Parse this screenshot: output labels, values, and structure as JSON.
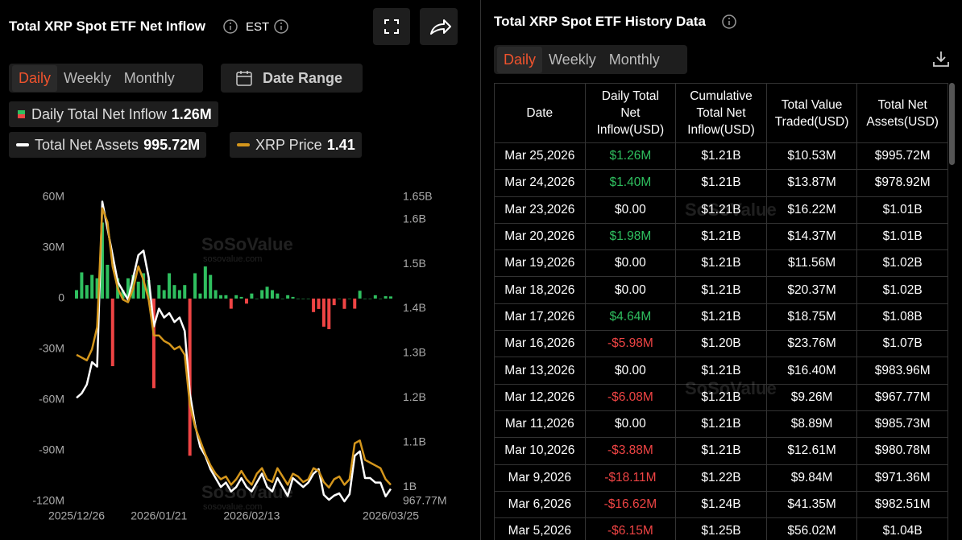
{
  "left_panel": {
    "title": "Total XRP Spot ETF Net Inflow",
    "timezone": "EST",
    "tabs": [
      "Daily",
      "Weekly",
      "Monthly"
    ],
    "date_range": "Date Range"
  },
  "chart_data": {
    "type": "combo",
    "categories": [
      "2025/12/26",
      null,
      null,
      null,
      null,
      null,
      null,
      null,
      null,
      null,
      null,
      null,
      null,
      null,
      null,
      null,
      "2026/01/21",
      null,
      null,
      null,
      null,
      null,
      null,
      null,
      null,
      null,
      null,
      null,
      null,
      null,
      null,
      null,
      null,
      null,
      "2026/02/13",
      null,
      null,
      null,
      null,
      null,
      null,
      null,
      null,
      null,
      null,
      null,
      null,
      null,
      null,
      null,
      null,
      null,
      null,
      null,
      null,
      null,
      null,
      null,
      null,
      null,
      null,
      "2026/03/25"
    ],
    "series": [
      {
        "name": "Daily Total Net Inflow",
        "type": "bar",
        "current": "1.26M",
        "color": "#2fbf5f",
        "negative_color": "#ef4444",
        "values": [
          5,
          15.5,
          8,
          14,
          12,
          45,
          20,
          -40,
          12,
          5,
          12,
          14,
          10,
          15,
          11,
          -53,
          8,
          5,
          15,
          8,
          5,
          8,
          -93,
          15,
          3,
          19,
          14,
          5,
          2,
          2,
          -6,
          2,
          1,
          -3,
          3,
          0,
          5,
          7,
          5,
          3,
          0,
          2,
          1,
          0,
          0,
          0,
          -8,
          -6.15,
          -16.62,
          -18.11,
          -3.88,
          0,
          -6.08,
          0,
          -5.98,
          4.64,
          0,
          0,
          1.98,
          0,
          1.4,
          1.26
        ]
      },
      {
        "name": "Total Net Assets",
        "type": "line",
        "axis": "y2",
        "current": "995.72M",
        "color": "#ffffff",
        "values": [
          1.2,
          1.21,
          1.23,
          1.28,
          1.27,
          1.64,
          1.58,
          1.52,
          1.46,
          1.44,
          1.42,
          1.47,
          1.52,
          1.53,
          1.47,
          1.36,
          1.4,
          1.38,
          1.39,
          1.37,
          1.38,
          1.35,
          1.21,
          1.14,
          1.09,
          1.07,
          1.04,
          1.02,
          1.0,
          1.01,
          0.99,
          1.0,
          1.02,
          1.0,
          0.99,
          1.01,
          1.03,
          1.0,
          0.99,
          1.02,
          1.0,
          0.98,
          1.02,
          1.01,
          1.0,
          1.01,
          1.03,
          1.04,
          0.98251,
          0.97136,
          0.98078,
          0.98573,
          0.96777,
          0.98396,
          1.07,
          1.08,
          1.02,
          1.02,
          1.01,
          1.01,
          0.97892,
          0.99572
        ]
      },
      {
        "name": "XRP Price",
        "type": "line",
        "axis": "y3",
        "current": "1.41",
        "color": "#d4961c",
        "values": [
          1.88,
          1.87,
          1.86,
          1.9,
          1.98,
          2.41,
          2.36,
          2.2,
          2.12,
          2.08,
          2.07,
          2.12,
          2.2,
          2.15,
          2.08,
          1.95,
          1.95,
          1.93,
          1.92,
          1.9,
          1.91,
          1.88,
          1.7,
          1.62,
          1.57,
          1.52,
          1.48,
          1.45,
          1.43,
          1.44,
          1.41,
          1.43,
          1.46,
          1.43,
          1.41,
          1.45,
          1.47,
          1.43,
          1.42,
          1.47,
          1.44,
          1.41,
          1.45,
          1.44,
          1.42,
          1.43,
          1.47,
          1.46,
          1.42,
          1.4,
          1.43,
          1.44,
          1.41,
          1.43,
          1.56,
          1.57,
          1.5,
          1.49,
          1.48,
          1.47,
          1.43,
          1.41
        ]
      }
    ],
    "ylim": [
      -120,
      60
    ],
    "yticks": [
      {
        "value": 60,
        "label": "60M"
      },
      {
        "value": 30,
        "label": "30M"
      },
      0,
      {
        "value": -30,
        "label": "-30M"
      },
      {
        "value": -60,
        "label": "-60M"
      },
      {
        "value": -90,
        "label": "-90M"
      },
      {
        "value": -120,
        "label": "-120M"
      }
    ],
    "y2lim": [
      0.96777,
      1.65
    ],
    "y2ticks": [
      {
        "value": 1.65,
        "label": "1.65B"
      },
      {
        "value": 1.6,
        "label": "1.6B"
      },
      {
        "value": 1.5,
        "label": "1.5B"
      },
      {
        "value": 1.4,
        "label": "1.4B"
      },
      {
        "value": 1.3,
        "label": "1.3B"
      },
      {
        "value": 1.2,
        "label": "1.2B"
      },
      {
        "value": 1.1,
        "label": "1.1B"
      },
      {
        "value": 1,
        "label": "1B"
      },
      {
        "value": 0.96777,
        "label": "967.77M"
      }
    ],
    "y3lim": [
      1.35,
      2.45
    ],
    "grid": false,
    "watermark": {
      "brand": "SoSoValue",
      "site": "sosovalue.com"
    }
  },
  "right_panel": {
    "title": "Total XRP Spot ETF History Data",
    "tabs": [
      "Daily",
      "Weekly",
      "Monthly"
    ],
    "table": {
      "columns": [
        "Date",
        "Daily Total Net Inflow(USD)",
        "Cumulative Total Net Inflow(USD)",
        "Total Value Traded(USD)",
        "Total Net Assets(USD)"
      ],
      "rows": [
        [
          "Mar 25,2026",
          "$1.26M",
          "$1.21B",
          "$10.53M",
          "$995.72M"
        ],
        [
          "Mar 24,2026",
          "$1.40M",
          "$1.21B",
          "$13.87M",
          "$978.92M"
        ],
        [
          "Mar 23,2026",
          "$0.00",
          "$1.21B",
          "$16.22M",
          "$1.01B"
        ],
        [
          "Mar 20,2026",
          "$1.98M",
          "$1.21B",
          "$14.37M",
          "$1.01B"
        ],
        [
          "Mar 19,2026",
          "$0.00",
          "$1.21B",
          "$11.56M",
          "$1.02B"
        ],
        [
          "Mar 18,2026",
          "$0.00",
          "$1.21B",
          "$20.37M",
          "$1.02B"
        ],
        [
          "Mar 17,2026",
          "$4.64M",
          "$1.21B",
          "$18.75M",
          "$1.08B"
        ],
        [
          "Mar 16,2026",
          "-$5.98M",
          "$1.20B",
          "$23.76M",
          "$1.07B"
        ],
        [
          "Mar 13,2026",
          "$0.00",
          "$1.21B",
          "$16.40M",
          "$983.96M"
        ],
        [
          "Mar 12,2026",
          "-$6.08M",
          "$1.21B",
          "$9.26M",
          "$967.77M"
        ],
        [
          "Mar 11,2026",
          "$0.00",
          "$1.21B",
          "$8.89M",
          "$985.73M"
        ],
        [
          "Mar 10,2026",
          "-$3.88M",
          "$1.21B",
          "$12.61M",
          "$980.78M"
        ],
        [
          "Mar 9,2026",
          "-$18.11M",
          "$1.22B",
          "$9.84M",
          "$971.36M"
        ],
        [
          "Mar 6,2026",
          "-$16.62M",
          "$1.24B",
          "$41.35M",
          "$982.51M"
        ],
        [
          "Mar 5,2026",
          "-$6.15M",
          "$1.25B",
          "$56.02M",
          "$1.04B"
        ]
      ]
    }
  }
}
